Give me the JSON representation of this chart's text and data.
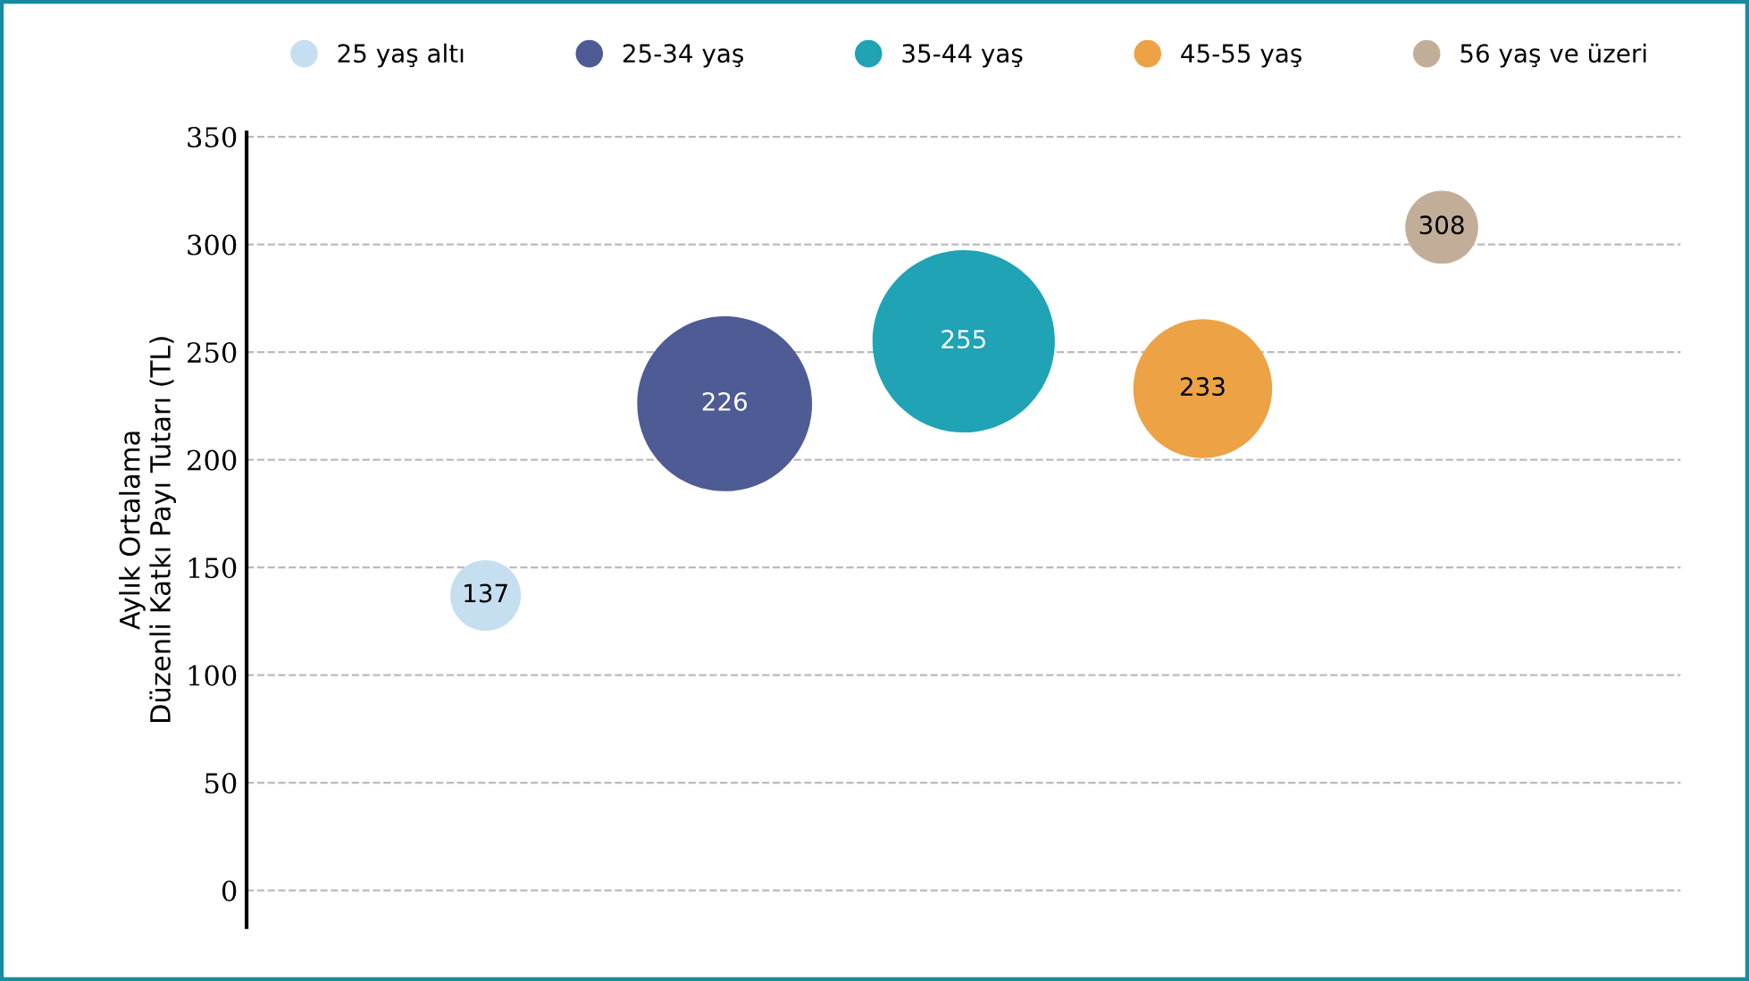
{
  "chart_data": {
    "type": "bubble",
    "ylabel": "Aylık Ortalama\nDüzenli Katkı Payı Tutarı (TL)",
    "categories": [
      null,
      null,
      null,
      null,
      null
    ],
    "series": [
      {
        "name": "25 yaş altı",
        "color": "#c5dff0",
        "values": [
          137,
          null,
          null,
          null,
          null
        ],
        "sizes": [
          0.15,
          null,
          null,
          null,
          null
        ]
      },
      {
        "name": "25-34 yaş",
        "color": "#4e5b94",
        "values": [
          null,
          226,
          null,
          null,
          null
        ],
        "sizes": [
          null,
          0.92,
          null,
          null,
          null
        ]
      },
      {
        "name": "35-44 yaş",
        "color": "#1fa3b5",
        "values": [
          null,
          null,
          255,
          null,
          null
        ],
        "sizes": [
          null,
          null,
          1,
          null,
          null
        ]
      },
      {
        "name": "45-55 yaş",
        "color": "#eca245",
        "values": [
          null,
          null,
          null,
          233,
          null
        ],
        "sizes": [
          null,
          null,
          null,
          0.58,
          null
        ]
      },
      {
        "name": "56 yaş ve üzeri",
        "color": "#c2ae98",
        "values": [
          null,
          null,
          null,
          null,
          308
        ],
        "sizes": [
          null,
          null,
          null,
          null,
          0.16
        ]
      }
    ],
    "ylim": [
      -17,
      352
    ],
    "yticks": [
      0,
      50,
      100,
      150,
      200,
      250,
      300,
      350
    ],
    "grid": "y",
    "legend": "top",
    "data_labels": true
  }
}
